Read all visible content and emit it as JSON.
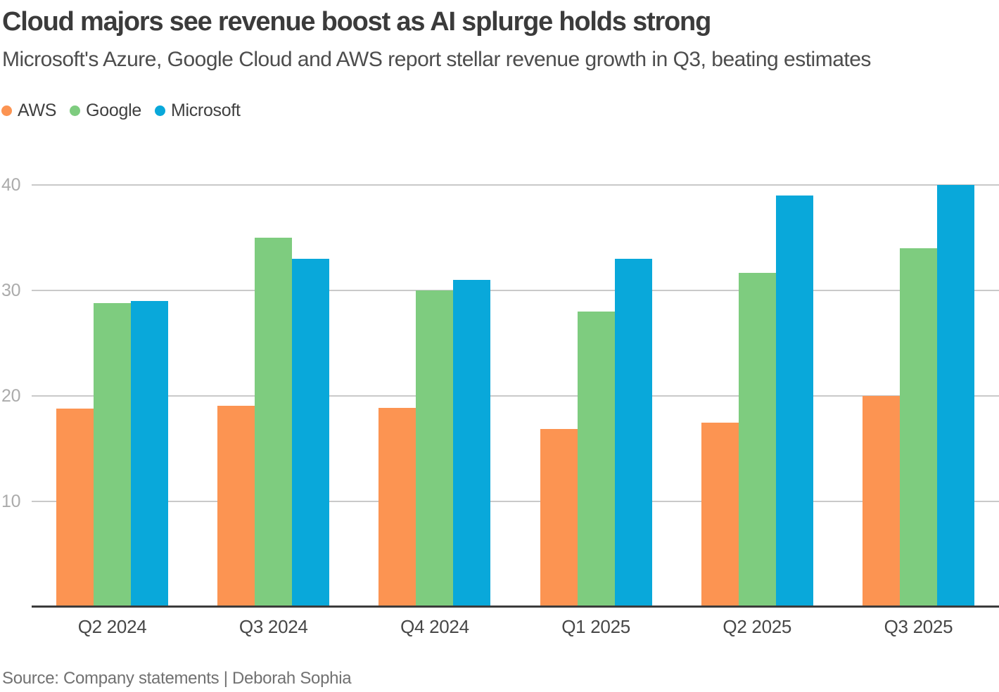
{
  "chart_data": {
    "type": "bar",
    "title": "Cloud majors see revenue boost as AI splurge holds strong",
    "subtitle": "Microsoft's Azure, Google Cloud and AWS report stellar revenue growth in Q3, beating estimates",
    "categories": [
      "Q2 2024",
      "Q3 2024",
      "Q4 2024",
      "Q1 2025",
      "Q2 2025",
      "Q3 2025"
    ],
    "series": [
      {
        "name": "AWS",
        "color": "#FC9452",
        "values": [
          18.8,
          19.1,
          18.9,
          16.9,
          17.5,
          20.0
        ]
      },
      {
        "name": "Google",
        "color": "#7ECC7F",
        "values": [
          28.8,
          35.0,
          30.0,
          28.0,
          31.7,
          34.0
        ]
      },
      {
        "name": "Microsoft",
        "color": "#09A8DA",
        "values": [
          29.0,
          33.0,
          31.0,
          33.0,
          39.0,
          40.0
        ]
      }
    ],
    "xlabel": "",
    "ylabel": "",
    "yticks": [
      10,
      20,
      30,
      40
    ],
    "ylim": [
      0,
      40
    ],
    "grid": true,
    "legend_position": "top-left"
  },
  "footer": {
    "source": "Source: Company statements | Deborah Sophia"
  }
}
